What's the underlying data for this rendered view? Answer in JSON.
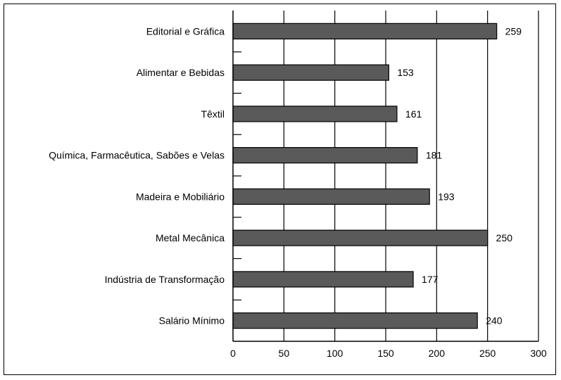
{
  "chart_data": {
    "type": "bar",
    "orientation": "horizontal",
    "categories": [
      "Editorial e Gráfica",
      "Alimentar e Bebidas",
      "Têxtil",
      "Química, Farmacêutica, Sabões e Velas",
      "Madeira e Mobiliário",
      "Metal Mecânica",
      "Indústria de Transformação",
      "Salário Mínimo"
    ],
    "values": [
      259,
      153,
      161,
      181,
      193,
      250,
      177,
      240
    ],
    "xlim": [
      0,
      300
    ],
    "xticks": [
      0,
      50,
      100,
      150,
      200,
      250,
      300
    ],
    "grid": "vertical",
    "title": "",
    "xlabel": "",
    "ylabel": "",
    "bar_color": "#5a5a5a",
    "bar_border_color": "#000000"
  }
}
